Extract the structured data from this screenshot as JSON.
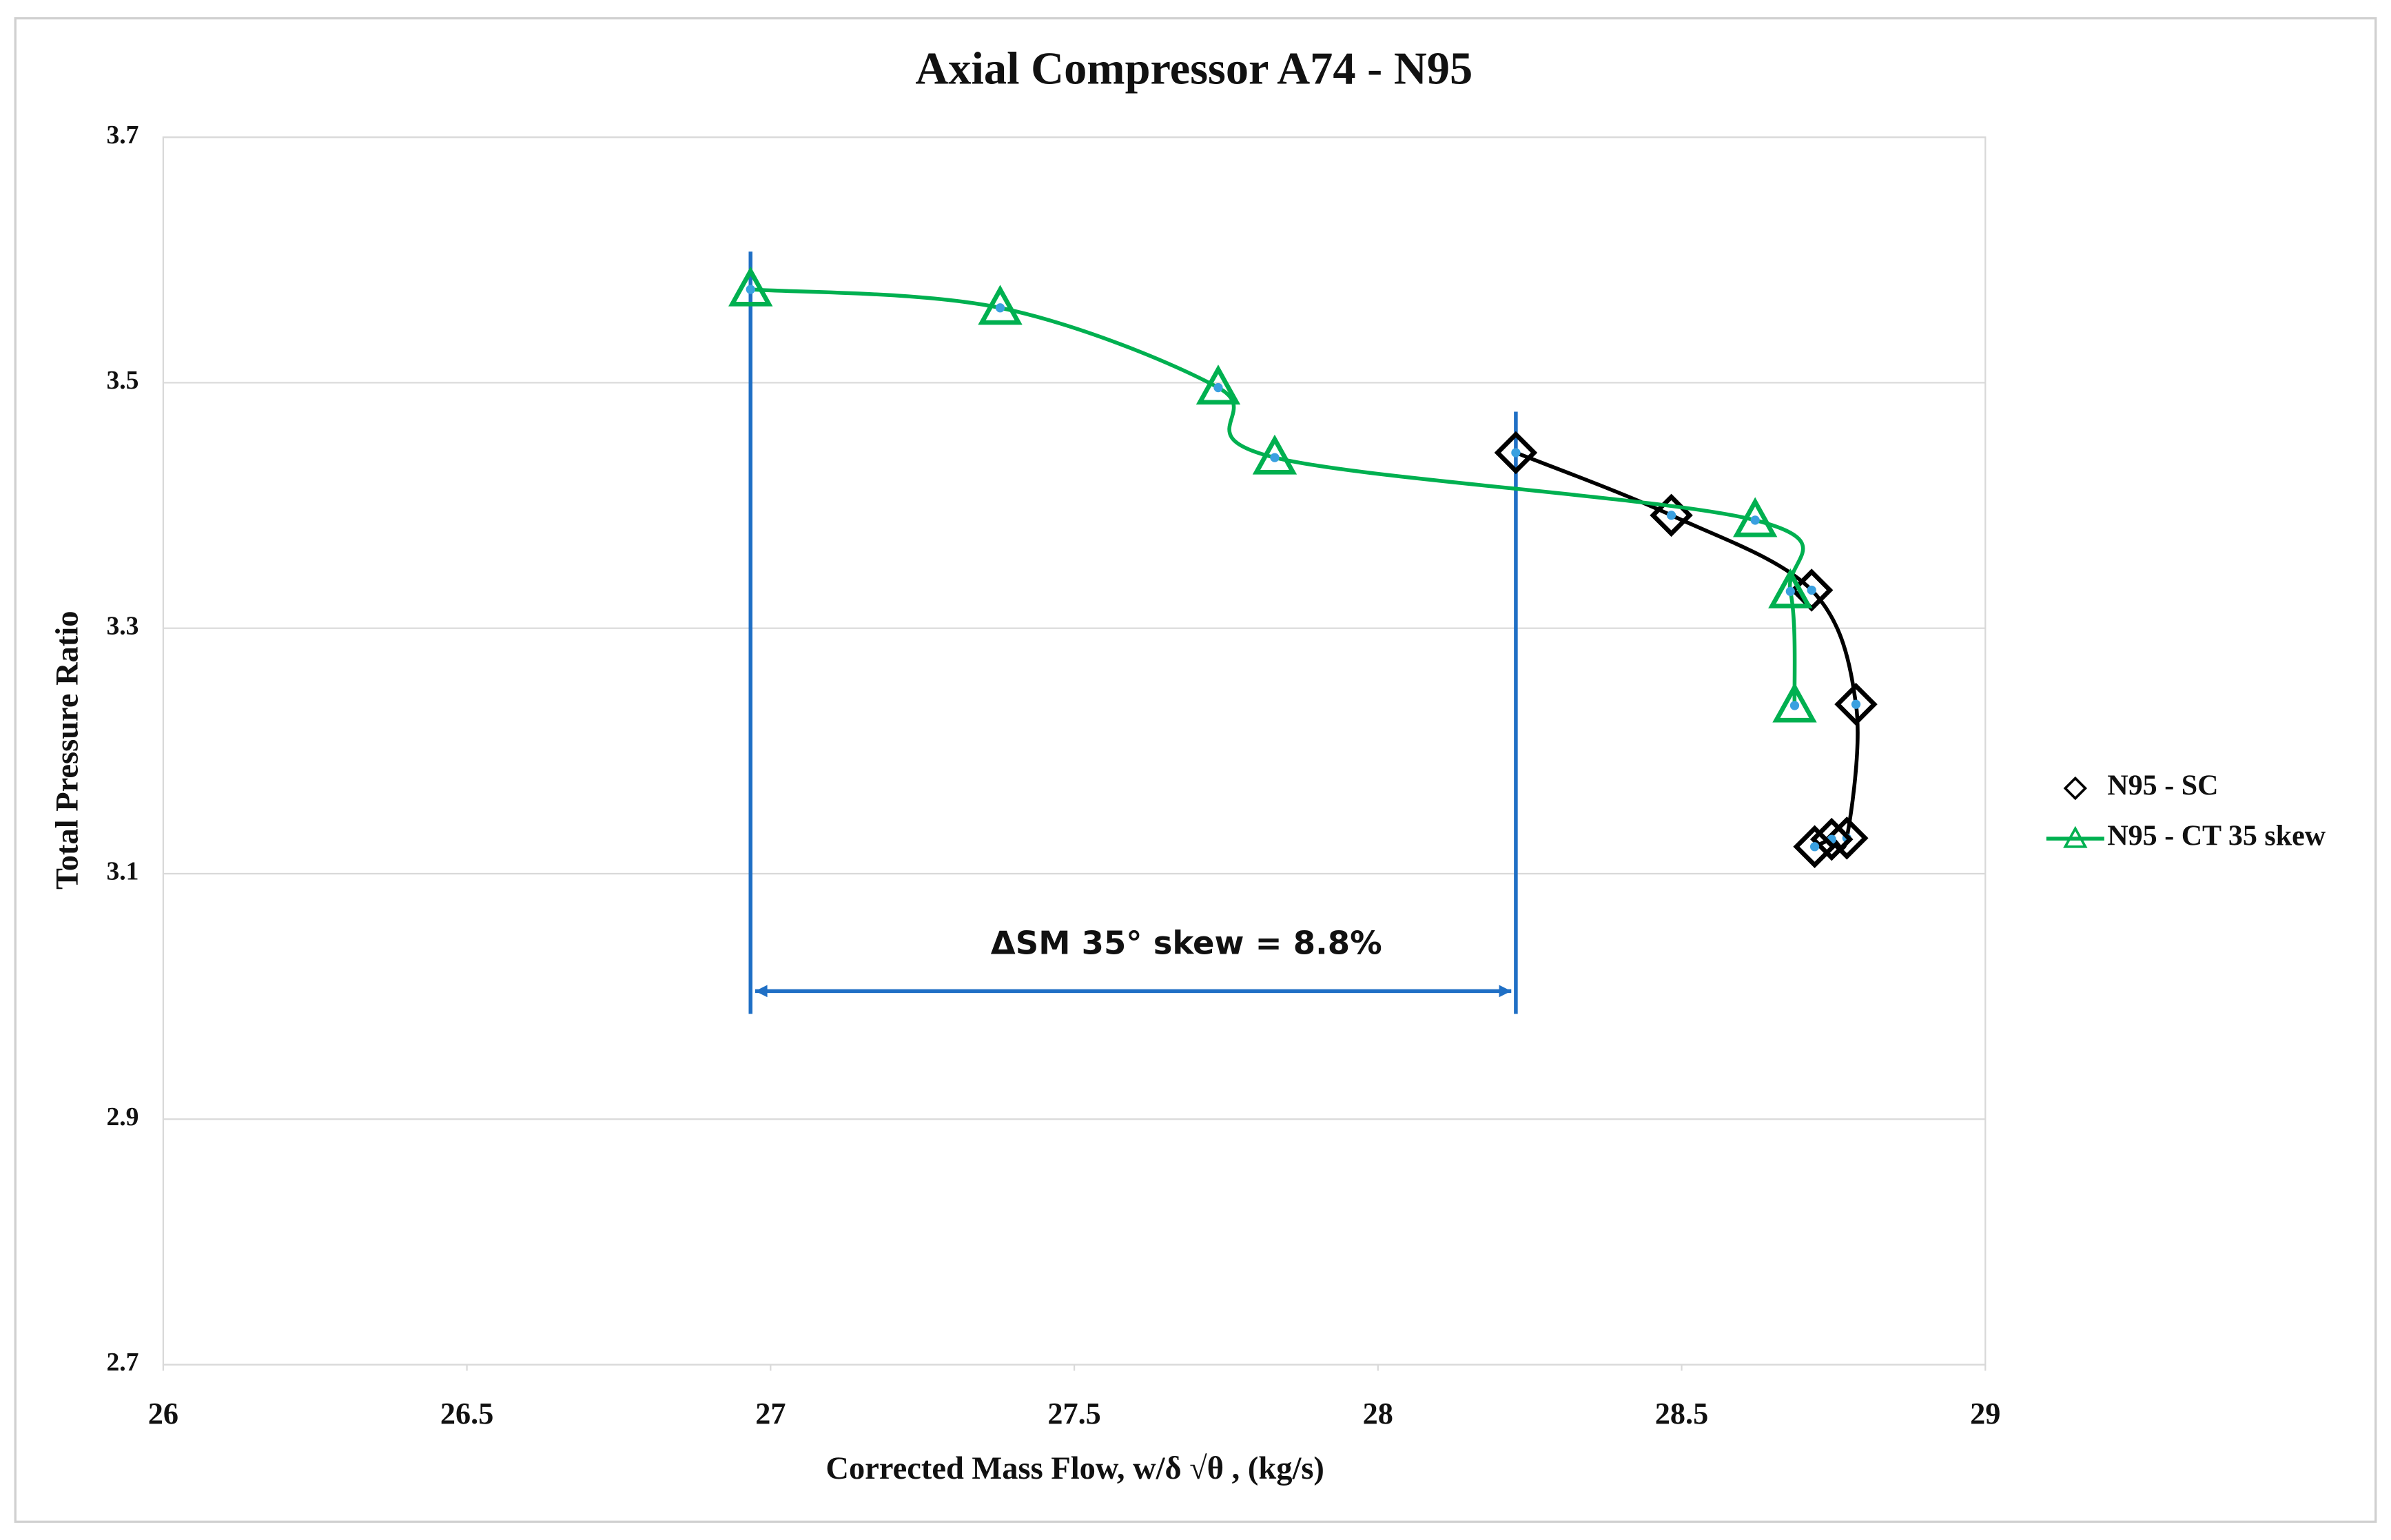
{
  "chart_data": {
    "type": "line",
    "title": "Axial Compressor A74 - N95",
    "x_label": "Corrected Mass Flow, w/δ √θ , (kg/s)",
    "y_label": "Total Pressure Ratio",
    "annotation": "ΔSM 35° skew = 8.8%",
    "xlim": [
      26,
      29
    ],
    "xticks": [
      26,
      26.5,
      27,
      27.5,
      28,
      28.5,
      29
    ],
    "ylim": [
      2.7,
      3.7
    ],
    "yticks": [
      2.7,
      2.9,
      3.1,
      3.3,
      3.5,
      3.7
    ],
    "grid": true,
    "legend": "right",
    "series": [
      {
        "name": "N95 - SC",
        "color": "#000000",
        "marker": "diamond",
        "x": [
          28.227,
          28.483,
          28.714,
          28.787,
          28.772,
          28.747,
          28.719
        ],
        "values": [
          3.443,
          3.392,
          3.331,
          3.238,
          3.129,
          3.128,
          3.122
        ]
      },
      {
        "name": "N95 - CT 35 skew",
        "color": "#00b050",
        "marker": "triangle",
        "x": [
          26.967,
          27.378,
          27.737,
          27.83,
          28.621,
          28.679,
          28.686
        ],
        "values": [
          3.576,
          3.561,
          3.496,
          3.439,
          3.388,
          3.33,
          3.237
        ]
      }
    ]
  }
}
